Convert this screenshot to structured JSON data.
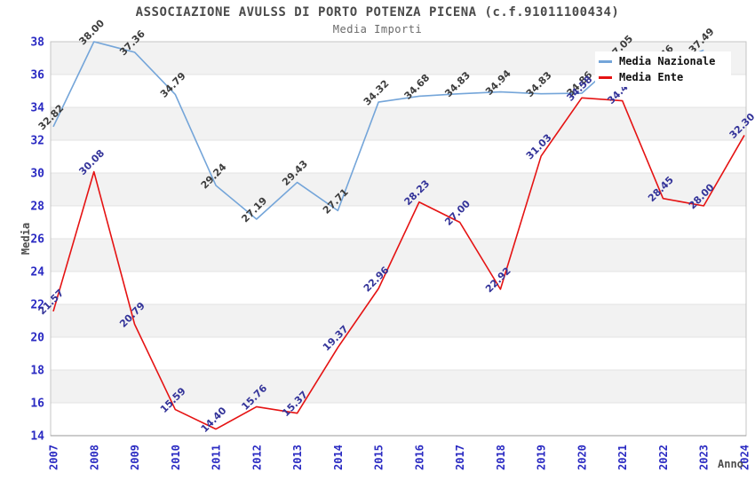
{
  "title": "ASSOCIAZIONE AVULSS DI PORTO POTENZA PICENA (c.f.91011100434)",
  "subtitle": "Media Importi",
  "chart_data": {
    "type": "line",
    "title": "ASSOCIAZIONE AVULSS DI PORTO POTENZA PICENA (c.f.91011100434)",
    "subtitle": "Media Importi",
    "xlabel": "Anno",
    "ylabel": "Media",
    "x": [
      2007,
      2008,
      2009,
      2010,
      2011,
      2012,
      2013,
      2014,
      2015,
      2016,
      2017,
      2018,
      2019,
      2020,
      2021,
      2022,
      2023,
      2024
    ],
    "ylim": [
      14,
      38
    ],
    "ytick_step": 2,
    "grid": "alternating-horizontal-bands",
    "legend_position": "top-right",
    "series": [
      {
        "name": "Media Nazionale",
        "color": "#74A5D9",
        "label_color": "#3C3C3C",
        "values": [
          32.82,
          38.0,
          37.36,
          34.79,
          29.24,
          27.19,
          29.43,
          27.71,
          34.32,
          34.68,
          34.83,
          34.94,
          34.83,
          34.86,
          37.05,
          36.46,
          37.49,
          null
        ]
      },
      {
        "name": "Media Ente",
        "color": "#E51313",
        "label_color": "#333399",
        "values": [
          21.57,
          30.08,
          20.79,
          15.59,
          14.4,
          15.76,
          15.37,
          19.37,
          22.96,
          28.23,
          27.0,
          22.92,
          31.03,
          34.58,
          34.4,
          28.45,
          28.0,
          32.3
        ]
      }
    ],
    "colors": {
      "tick_labels": "#2A2AC2",
      "band_gray": "#F2F2F2",
      "band_white": "#FFFFFF",
      "band_line": "#E3E3E3",
      "plot_border": "#C4C4C4",
      "axis_line": "#9A9A9A",
      "title_text": "#4A4A4A"
    }
  }
}
